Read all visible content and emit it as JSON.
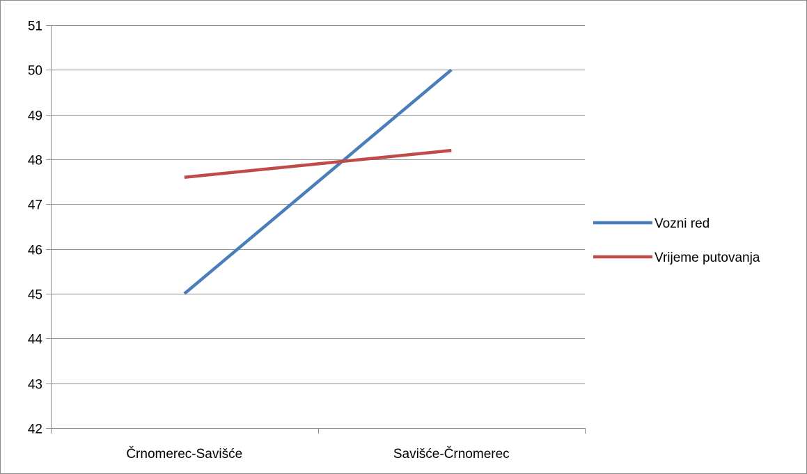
{
  "chart_data": {
    "type": "line",
    "title": "",
    "xlabel": "",
    "ylabel": "",
    "categories": [
      "Črnomerec-Savišće",
      "Savišće-Črnomerec"
    ],
    "ylim": [
      42,
      51
    ],
    "yticks": [
      42,
      43,
      44,
      45,
      46,
      47,
      48,
      49,
      50,
      51
    ],
    "grid": true,
    "legend_position": "right",
    "series": [
      {
        "name": "Vozni red",
        "values": [
          45,
          50
        ],
        "color": "#4a7ebb"
      },
      {
        "name": "Vrijeme putovanja",
        "values": [
          47.6,
          48.2
        ],
        "color": "#be4b48"
      }
    ]
  }
}
